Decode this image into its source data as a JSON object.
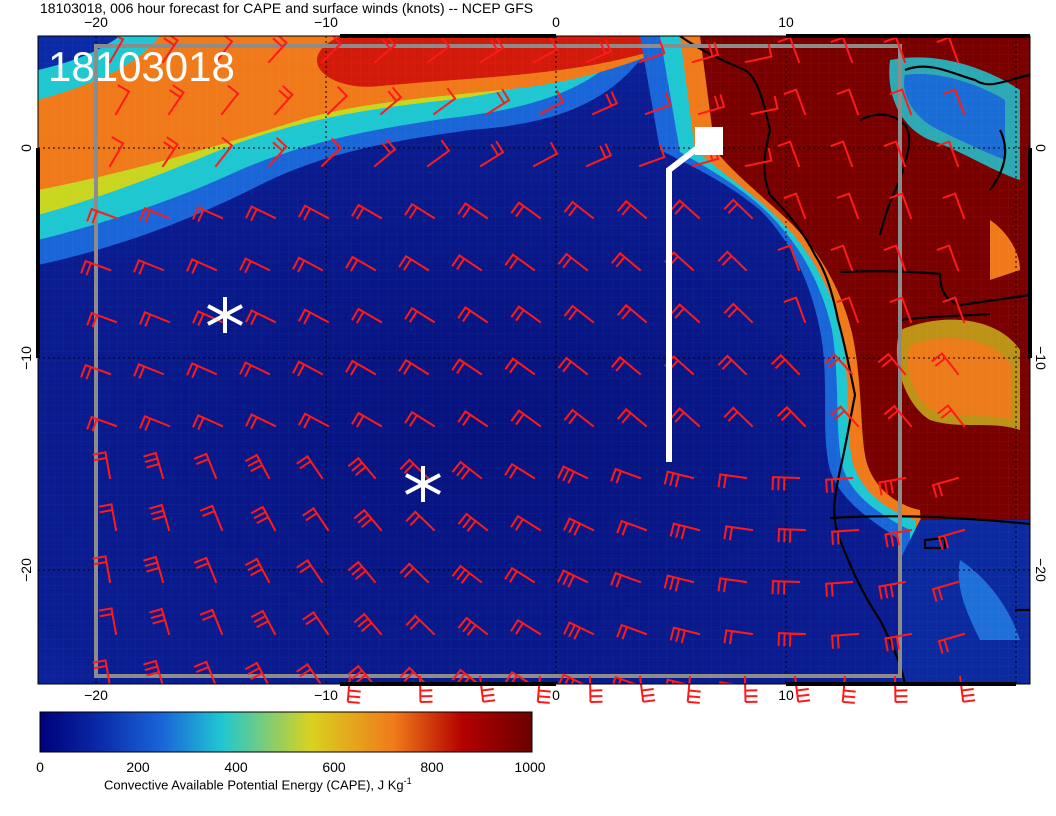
{
  "title": "18103018, 006 hour forecast for CAPE and surface winds (knots) -- NCEP GFS",
  "stamp": "18103018",
  "map": {
    "lon_ticks": [
      "−20",
      "−10",
      "0",
      "10"
    ],
    "lat_ticks": [
      "0",
      "−10",
      "−20"
    ],
    "lon_range": [
      -22.5,
      20
    ],
    "lat_range": [
      -25,
      5
    ],
    "wind_barb_color": "#ff1a1a",
    "markers": [
      {
        "type": "asterisk",
        "lon": -14.5,
        "lat": -8
      },
      {
        "type": "asterisk",
        "lon": -5.8,
        "lat": -16
      },
      {
        "type": "track-end-square",
        "lon": 6.9,
        "lat": 0.3
      }
    ]
  },
  "colorbar": {
    "ticks": [
      "0",
      "200",
      "400",
      "600",
      "800",
      "1000"
    ],
    "label": "Convective Available Potential Energy (CAPE), J Kg",
    "label_sup": "-1",
    "stops": [
      "#00007a",
      "#0a2aa8",
      "#1a66d9",
      "#1fc7d1",
      "#d9d21f",
      "#f07a1a",
      "#b40000",
      "#6b0000"
    ]
  }
}
